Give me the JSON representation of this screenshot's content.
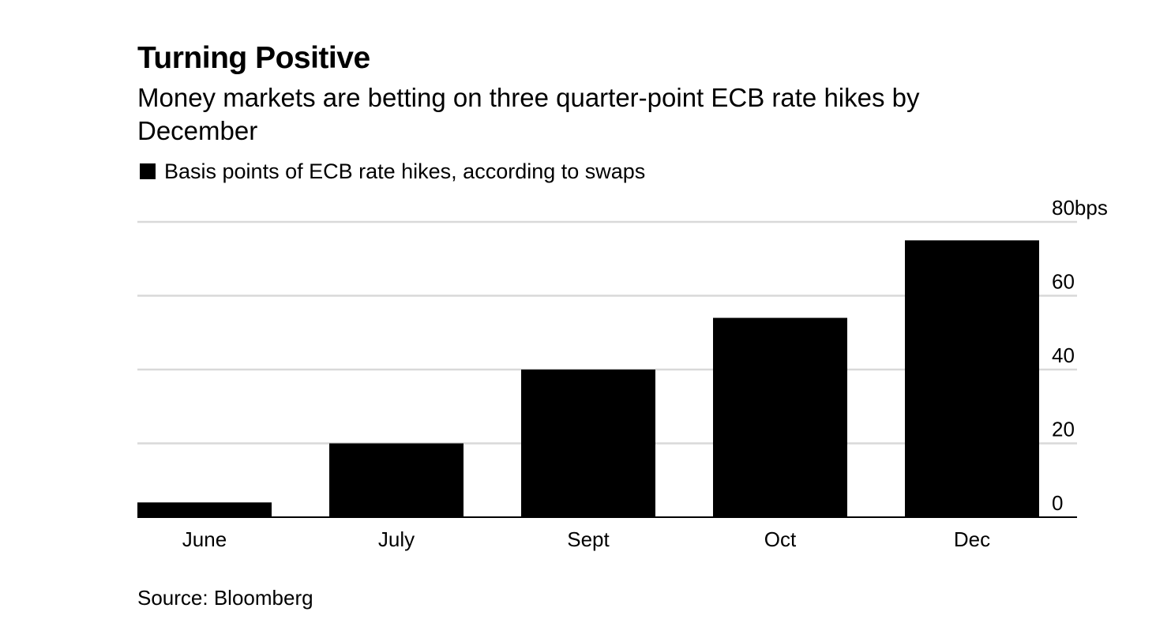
{
  "chart_data": {
    "type": "bar",
    "title": "Turning Positive",
    "subtitle": "Money markets are betting on three quarter-point ECB rate hikes by December",
    "legend": {
      "position": "top-left",
      "entries": [
        {
          "label": "Basis points of ECB rate hikes, according to swaps",
          "color": "#000000"
        }
      ]
    },
    "categories": [
      "June",
      "July",
      "Sept",
      "Oct",
      "Dec"
    ],
    "series": [
      {
        "values": [
          4,
          20,
          40,
          54,
          75
        ],
        "color": "#000000"
      }
    ],
    "y_axis": {
      "position": "right",
      "range": [
        0,
        80
      ],
      "ticks": [
        0,
        20,
        40,
        60,
        80
      ],
      "unit": "bps"
    },
    "grid": true,
    "grid_color": "#d9d9d9",
    "source": "Source: Bloomberg"
  }
}
